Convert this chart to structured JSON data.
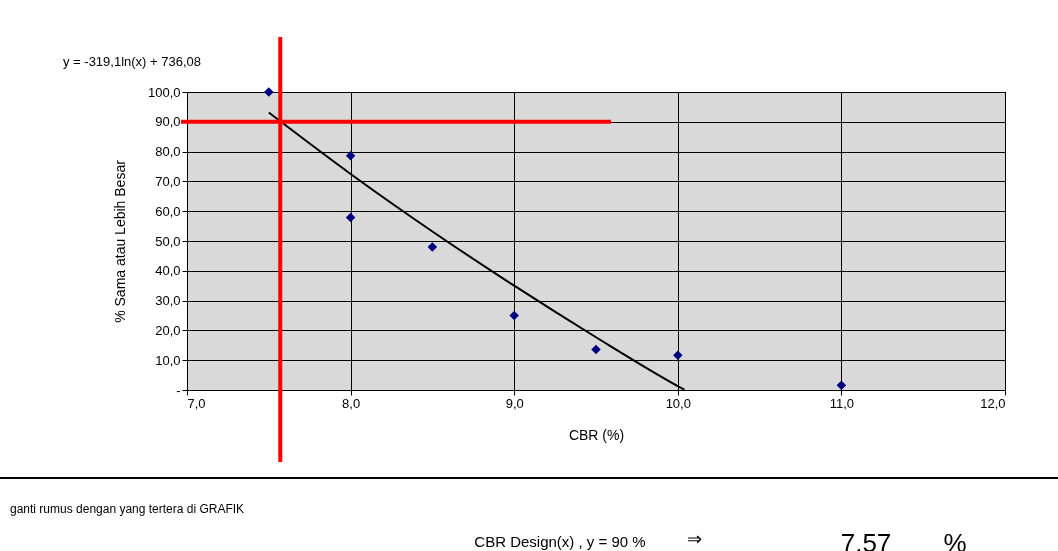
{
  "chart_data": {
    "type": "scatter",
    "xlabel": "CBR (%)",
    "ylabel": "% Sama atau Lebih Besar",
    "xlim": [
      7,
      12
    ],
    "ylim": [
      0,
      100
    ],
    "xticks": [
      {
        "value": 7,
        "label": "7,0"
      },
      {
        "value": 8,
        "label": "8,0"
      },
      {
        "value": 9,
        "label": "9,0"
      },
      {
        "value": 10,
        "label": "10,0"
      },
      {
        "value": 11,
        "label": "11,0"
      },
      {
        "value": 12,
        "label": "12,0"
      }
    ],
    "yticks": [
      {
        "value": 0,
        "label": "-"
      },
      {
        "value": 10,
        "label": "10,0"
      },
      {
        "value": 20,
        "label": "20,0"
      },
      {
        "value": 30,
        "label": "30,0"
      },
      {
        "value": 40,
        "label": "40,0"
      },
      {
        "value": 50,
        "label": "50,0"
      },
      {
        "value": 60,
        "label": "60,0"
      },
      {
        "value": 70,
        "label": "70,0"
      },
      {
        "value": 80,
        "label": "80,0"
      },
      {
        "value": 90,
        "label": "90,0"
      },
      {
        "value": 100,
        "label": "100,0"
      }
    ],
    "grid": true,
    "marker": "diamond",
    "series": [
      {
        "color": "#000080",
        "x": [
          7.5,
          8,
          8,
          8.5,
          9,
          9.5,
          10,
          11
        ],
        "values": [
          100,
          78.6,
          57.9,
          48,
          25,
          13.6,
          11.7,
          1.6
        ]
      },
      {
        "type": "line",
        "marker": "none",
        "color": "#000000",
        "x": [
          7.5,
          8,
          8.5,
          9,
          9.5,
          10,
          10.04
        ],
        "values": [
          93.1,
          72.5,
          53.2,
          35.0,
          17.7,
          1.3,
          0.1
        ]
      }
    ],
    "ref_lines": [
      {
        "axis": "x",
        "value": 7.57,
        "color": "#ff0000"
      },
      {
        "axis": "y",
        "value": 90,
        "color": "#ff0000"
      }
    ],
    "annotations": [
      "y = -319,1ln(x) + 736,08",
      "ganti rumus dengan yang tertera di GRAFIK",
      "CBR Design(x) , y = 90 %",
      "⇒",
      "7.57",
      "%"
    ]
  }
}
